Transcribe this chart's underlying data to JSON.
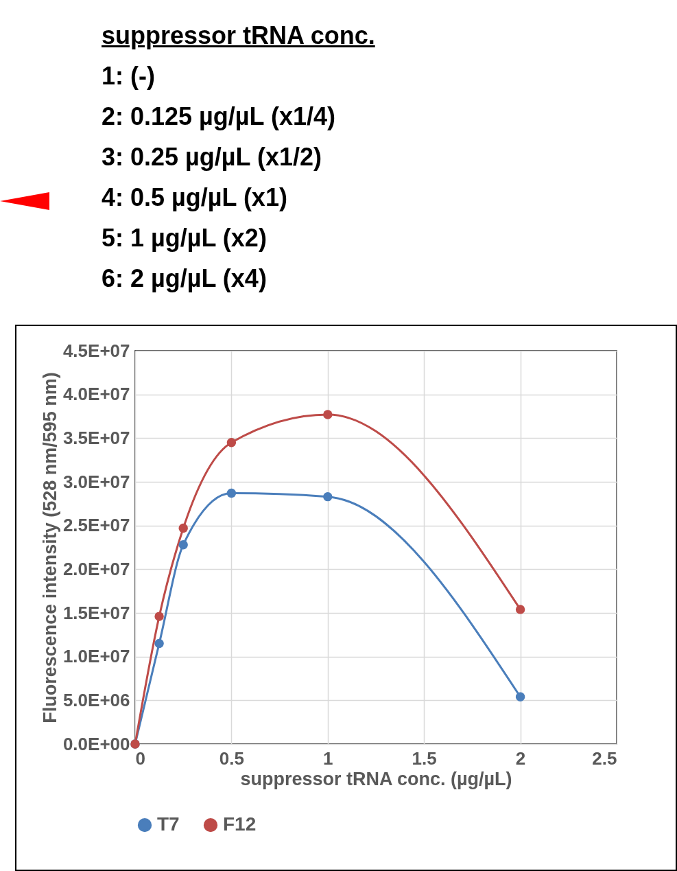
{
  "chart_data": {
    "type": "line",
    "title": "suppressor tRNA conc.",
    "annotations": [
      "1: (-)",
      "2: 0.125 µg/µL (x1/4)",
      "3: 0.25 µg/µL (x1/2)",
      "4: 0.5 µg/µL (x1)",
      "5: 1 µg/µL (x2)",
      "6: 2 µg/µL (x4)"
    ],
    "xlabel": "suppressor tRNA conc. (µg/µL)",
    "ylabel": "Fluorescence intensity (528 nm/595 nm)",
    "x": [
      0,
      0.125,
      0.25,
      0.5,
      1,
      2
    ],
    "series": [
      {
        "name": "T7",
        "color": "#4a7ebb",
        "values": [
          0,
          11500000,
          22800000,
          28700000,
          28300000,
          5400000
        ]
      },
      {
        "name": "F12",
        "color": "#be4b48",
        "values": [
          0,
          14600000,
          24700000,
          34500000,
          37700000,
          15400000
        ]
      }
    ],
    "xlim": [
      0,
      2.5
    ],
    "xticks": [
      0,
      0.5,
      1,
      1.5,
      2,
      2.5
    ],
    "ylim": [
      0,
      45000000
    ],
    "yticks": [
      {
        "value": 0,
        "label": "0.0E+00"
      },
      {
        "value": 5000000,
        "label": "5.0E+06"
      },
      {
        "value": 10000000,
        "label": "1.0E+07"
      },
      {
        "value": 15000000,
        "label": "1.5E+07"
      },
      {
        "value": 20000000,
        "label": "2.0E+07"
      },
      {
        "value": 25000000,
        "label": "2.5E+07"
      },
      {
        "value": 30000000,
        "label": "3.0E+07"
      },
      {
        "value": 35000000,
        "label": "3.5E+07"
      },
      {
        "value": 40000000,
        "label": "4.0E+07"
      },
      {
        "value": 45000000,
        "label": "4.5E+07"
      }
    ],
    "grid": true,
    "legend": "bottom",
    "marker": "circle",
    "line_style": "solid"
  }
}
